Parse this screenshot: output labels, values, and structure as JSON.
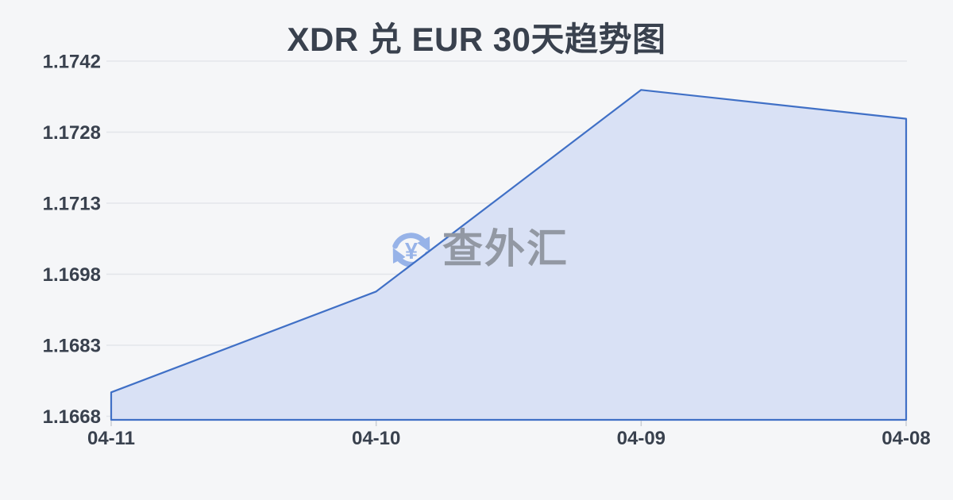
{
  "title": "XDR 兑 EUR 30天趋势图",
  "watermark": {
    "text": "查外汇",
    "symbol": "¥",
    "icon": "currency-exchange-icon"
  },
  "colors": {
    "background": "#f5f6f8",
    "line": "#4070c6",
    "area_fill": "#d9e1f5",
    "grid": "#e3e5ea",
    "tick": "#c9cdd4",
    "label": "#39414e",
    "watermark_text": "#9298a3",
    "watermark_icon": "#97b3e8"
  },
  "chart_data": {
    "type": "area",
    "title": "XDR 兑 EUR 30天趋势图",
    "categories": [
      "04-11",
      "04-10",
      "04-09",
      "04-08"
    ],
    "values": [
      1.1673,
      1.1694,
      1.1736,
      1.173
    ],
    "series_name": "XDR/EUR",
    "xlabel": "",
    "ylabel": "",
    "y_tick_labels": [
      "1.1742",
      "1.1728",
      "1.1713",
      "1.1698",
      "1.1683",
      "1.1668"
    ],
    "ylim": [
      1.1668,
      1.1742
    ],
    "grid": true,
    "legend": false
  }
}
